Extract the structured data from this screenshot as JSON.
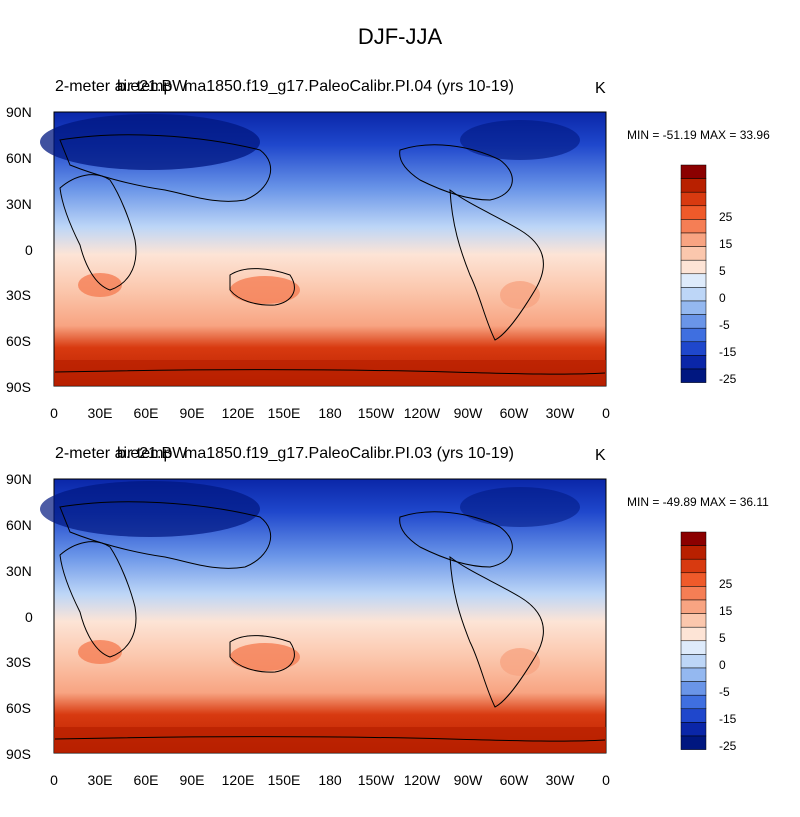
{
  "page_title": "DJF-JJA",
  "panels": [
    {
      "var_label": "2-meter air temp",
      "var_label_overlap": "b.e21.BW",
      "case_label": "ma1850.f19_g17.PaleoCalibr.PI.04 (yrs 10-19)",
      "units": "K",
      "stats": "MIN = -51.19 MAX =  33.96"
    },
    {
      "var_label": "2-meter air temp",
      "var_label_overlap": "b.e21.BW",
      "case_label": "ma1850.f19_g17.PaleoCalibr.PI.03 (yrs 10-19)",
      "units": "K",
      "stats": "MIN = -49.89 MAX =  36.11"
    }
  ],
  "lat_labels": [
    "90N",
    "60N",
    "30N",
    "0",
    "30S",
    "60S",
    "90S"
  ],
  "lon_labels": [
    "0",
    "30E",
    "60E",
    "90E",
    "120E",
    "150E",
    "180",
    "150W",
    "120W",
    "90W",
    "60W",
    "30W",
    "0"
  ],
  "colorbar": {
    "labels": [
      "25",
      "15",
      "5",
      "0",
      "-5",
      "-15",
      "-25"
    ],
    "colors": [
      "#8b0000",
      "#b82000",
      "#d83a10",
      "#ef5a2a",
      "#f57e55",
      "#f8a482",
      "#fbc7ad",
      "#fde4d6",
      "#deebfb",
      "#bdd6f7",
      "#94b8f0",
      "#6a95e8",
      "#3f6fe0",
      "#1f47cc",
      "#0a26a8",
      "#001780"
    ]
  }
}
